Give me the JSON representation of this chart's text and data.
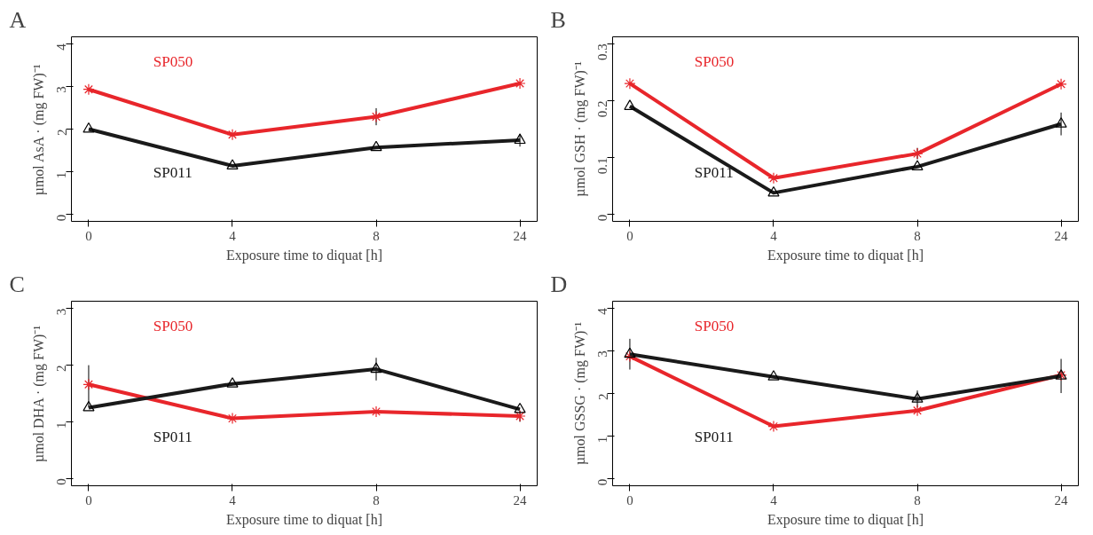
{
  "chart_data": [
    {
      "type": "line",
      "title": "A",
      "xlabel": "Exposure time to diquat [h]",
      "ylabel": "µmol AsA · (mg FW)⁻¹",
      "categories": [
        "0",
        "4",
        "8",
        "24"
      ],
      "ylim": [
        -0.16,
        4.16
      ],
      "yticks": [
        0,
        1,
        2,
        3,
        4
      ],
      "grid": false,
      "line_style": "solid",
      "series": [
        {
          "name": "SP050",
          "color": "#e8262b",
          "marker": "cross",
          "values": [
            2.93,
            1.87,
            2.29,
            3.07
          ],
          "errors": [
            null,
            null,
            0.2,
            null
          ]
        },
        {
          "name": "SP011",
          "color": "#1a1a1a",
          "marker": "triangle",
          "values": [
            2.0,
            1.14,
            1.57,
            1.74
          ],
          "errors": [
            null,
            null,
            null,
            0.15
          ]
        }
      ]
    },
    {
      "type": "line",
      "title": "B",
      "xlabel": "Exposure time to diquat [h]",
      "ylabel": "µmol GSH · (mg FW)⁻¹",
      "categories": [
        "0",
        "4",
        "8",
        "24"
      ],
      "ylim": [
        -0.012,
        0.312
      ],
      "yticks": [
        0,
        0.1,
        0.2,
        0.3
      ],
      "grid": false,
      "line_style": "solid",
      "series": [
        {
          "name": "SP050",
          "color": "#e8262b",
          "marker": "cross",
          "values": [
            0.23,
            0.064,
            0.107,
            0.229
          ],
          "errors": [
            null,
            null,
            0.01,
            null
          ]
        },
        {
          "name": "SP011",
          "color": "#1a1a1a",
          "marker": "triangle",
          "values": [
            0.19,
            0.038,
            0.084,
            0.159
          ],
          "errors": [
            null,
            null,
            null,
            0.02
          ]
        }
      ]
    },
    {
      "type": "line",
      "title": "C",
      "xlabel": "Exposure time to diquat [h]",
      "ylabel": "µmol DHA · (mg FW)⁻¹",
      "categories": [
        "0",
        "4",
        "8",
        "24"
      ],
      "ylim": [
        -0.13,
        3.13
      ],
      "yticks": [
        0,
        1,
        2,
        3
      ],
      "grid": false,
      "line_style": "solid",
      "series": [
        {
          "name": "SP050",
          "color": "#e8262b",
          "marker": "cross",
          "values": [
            1.66,
            1.06,
            1.18,
            1.1
          ],
          "errors": [
            null,
            null,
            null,
            0.1
          ]
        },
        {
          "name": "SP011",
          "color": "#1a1a1a",
          "marker": "triangle",
          "values": [
            1.25,
            1.67,
            1.93,
            1.22
          ],
          "errors": [
            [
              1.25,
              2.0
            ],
            null,
            0.2,
            null
          ]
        }
      ]
    },
    {
      "type": "line",
      "title": "D",
      "xlabel": "Exposure time to diquat [h]",
      "ylabel": "µmol GSSG · (mg FW)⁻¹",
      "categories": [
        "0",
        "4",
        "8",
        "24"
      ],
      "ylim": [
        -0.16,
        4.16
      ],
      "yticks": [
        0,
        1,
        2,
        3,
        4
      ],
      "grid": false,
      "line_style": "solid",
      "series": [
        {
          "name": "SP050",
          "color": "#e8262b",
          "marker": "cross",
          "values": [
            2.87,
            1.23,
            1.6,
            2.43
          ]
        },
        {
          "name": "SP011",
          "color": "#1a1a1a",
          "marker": "triangle",
          "values": [
            2.92,
            2.39,
            1.87,
            2.41
          ],
          "errors": [
            0.36,
            null,
            0.2,
            0.4
          ]
        }
      ]
    }
  ]
}
